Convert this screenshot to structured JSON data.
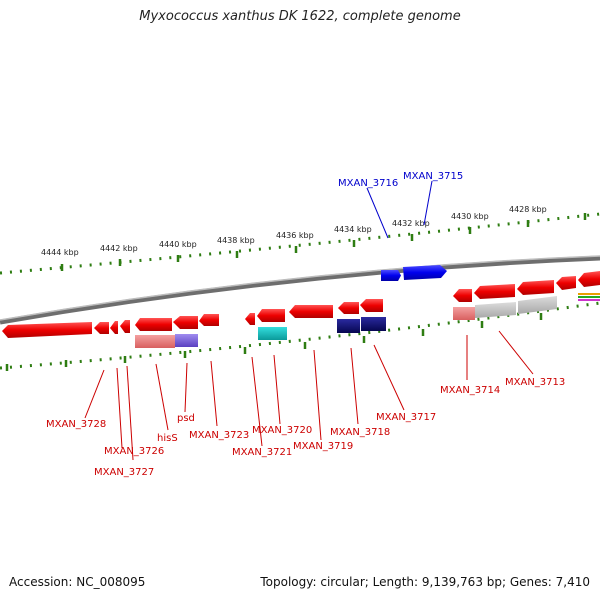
{
  "title": "Myxococcus xanthus DK 1622, complete genome",
  "footer": {
    "accession_label": "Accession:",
    "accession": "NC_008095",
    "topology_text": "Topology: circular; Length: 9,139,763 bp; Genes: 7,410"
  },
  "ticks": [
    "4444 kbp",
    "4442 kbp",
    "4440 kbp",
    "4438 kbp",
    "4436 kbp",
    "4434 kbp",
    "4432 kbp",
    "4430 kbp",
    "4428 kbp"
  ],
  "genes_forward": [
    "MXAN_3716",
    "MXAN_3715"
  ],
  "genes_reverse": [
    "MXAN_3728",
    "MXAN_3726",
    "MXAN_3727",
    "hisS",
    "psd",
    "MXAN_3723",
    "MXAN_3721",
    "MXAN_3720",
    "MXAN_3719",
    "MXAN_3718",
    "MXAN_3717",
    "MXAN_3714",
    "MXAN_3713"
  ],
  "colors": {
    "forward": "#0000cc",
    "reverse": "#cc0000",
    "backbone": "#8a8a8a",
    "tick": "#2e7d12",
    "gene_red": "#ee1111",
    "navy": "#0a0a80",
    "cyan": "#11c4c4",
    "violet": "#7a5ad6",
    "grey": "#b8b8b8"
  }
}
